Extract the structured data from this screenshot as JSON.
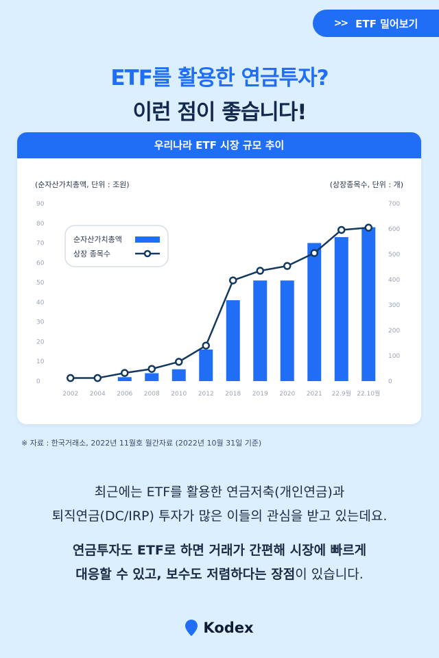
{
  "top_button": {
    "label": "ETF 밀어보기",
    "icon": "double-chevron-right-icon",
    "color": "#1f6ef5"
  },
  "headline": {
    "line1": "ETF를 활용한 연금투자?",
    "line2": "이런 점이 좋습니다!"
  },
  "card_title": "우리나라 ETF 시장 규모 추이",
  "chart_data": {
    "type": "bar+line",
    "title": "우리나라 ETF 시장 규모 추이",
    "categories": [
      "2002",
      "2004",
      "2006",
      "2008",
      "2010",
      "2012",
      "2018",
      "2019",
      "2020",
      "2021",
      "22.9월",
      "22.10월"
    ],
    "left_axis_label": "(순자산가치총액, 단위 : 조원)",
    "right_axis_label": "(상장종목수, 단위 : 개)",
    "left_ticks": [
      "0",
      "10",
      "20",
      "30",
      "40",
      "50",
      "60",
      "70",
      "80",
      "90"
    ],
    "right_ticks": [
      "0",
      "100",
      "200",
      "300",
      "400",
      "500",
      "600",
      "700"
    ],
    "ylim_left": [
      0,
      90
    ],
    "ylim_right": [
      0,
      700
    ],
    "series": [
      {
        "name": "순자산가치총액",
        "type": "bar",
        "axis": "left",
        "color": "#1f6ef5",
        "values": [
          0,
          0,
          2,
          4,
          6,
          16,
          41,
          51,
          51,
          70,
          73,
          78
        ]
      },
      {
        "name": "상장 종목수",
        "type": "line",
        "axis": "right",
        "color": "#12385f",
        "values": [
          12,
          12,
          32,
          48,
          76,
          140,
          397,
          435,
          454,
          505,
          596,
          605
        ]
      }
    ],
    "legend": "top-left",
    "grid": false
  },
  "source": "※ 자료 : 한국거래소, 2022년 11월호 월간자료 (2022년 10월 31일 기준)",
  "body_line1": "최근에는 ETF를 활용한 연금저축(개인연금)과",
  "body_line2": "퇴직연금(DC/IRP) 투자가 많은 이들의 관심을 받고 있는데요.",
  "body_line3": "연금투자도 ETF로 하면 거래가 간편해 시장에 빠르게",
  "body_line4_bold": "대응할 수 있고, 보수도 저렴하다는 장점",
  "body_line4_rest": "이 있습니다.",
  "brand": {
    "name": "Kodex",
    "icon": "location-pin-icon",
    "color": "#1f6ef5"
  }
}
